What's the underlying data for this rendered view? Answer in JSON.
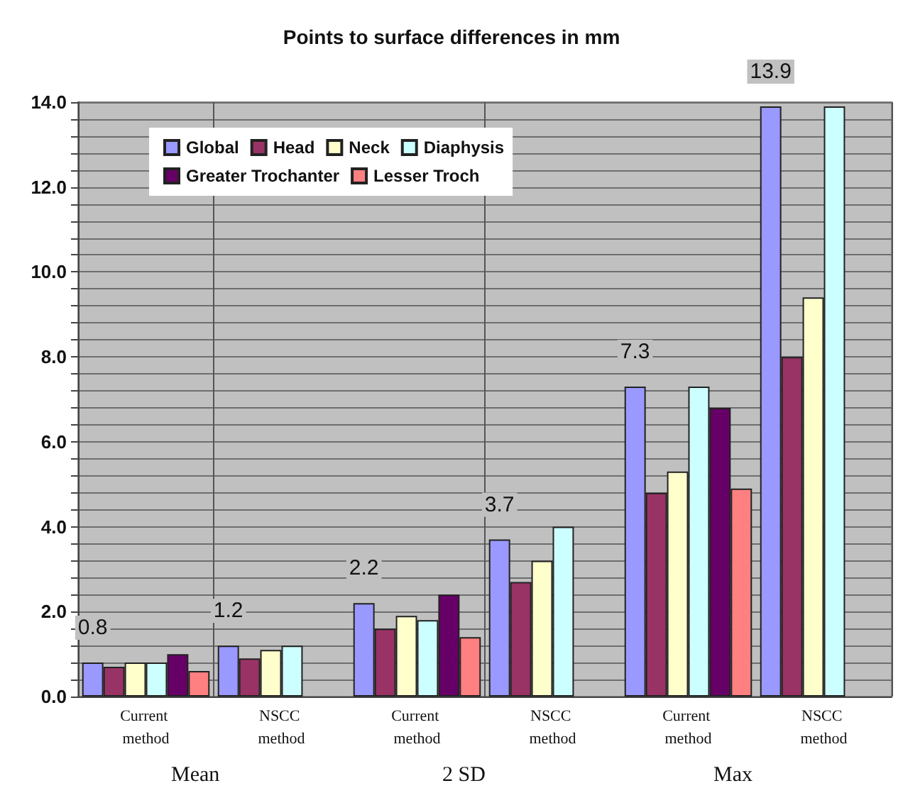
{
  "chart_data": {
    "type": "bar",
    "title": "Points to surface differences in mm",
    "categories": [
      "Current method",
      "NSCC method",
      "Current method",
      "NSCC method",
      "Current method",
      "NSCC method"
    ],
    "series": [
      {
        "name": "Global",
        "color": "#9999ff",
        "values": [
          0.8,
          1.2,
          2.2,
          3.7,
          7.3,
          13.9
        ],
        "value_labels": [
          "0.8",
          "1.2",
          "2.2",
          "3.7",
          "7.3",
          "13.9"
        ]
      },
      {
        "name": "Head",
        "color": "#993366",
        "values": [
          0.7,
          0.9,
          1.6,
          2.7,
          4.8,
          8.0
        ]
      },
      {
        "name": "Neck",
        "color": "#ffffcc",
        "values": [
          0.8,
          1.1,
          1.9,
          3.2,
          5.3,
          9.4
        ]
      },
      {
        "name": "Diaphysis",
        "color": "#ccffff",
        "values": [
          0.8,
          1.2,
          1.8,
          4.0,
          7.3,
          13.9
        ]
      },
      {
        "name": "Greater Trochanter",
        "color": "#660066",
        "values": [
          1.0,
          null,
          2.4,
          null,
          6.8,
          null
        ]
      },
      {
        "name": "Lesser Troch",
        "color": "#ff8080",
        "values": [
          0.6,
          null,
          1.4,
          null,
          4.9,
          null
        ]
      }
    ],
    "annotations": [
      "Mean",
      "2 SD",
      "Max"
    ],
    "ylim": [
      0,
      14
    ],
    "yticks": [
      {
        "value": 0,
        "label": "0.0"
      },
      {
        "value": 0.4,
        "label": null
      },
      {
        "value": 0.8,
        "label": null
      },
      {
        "value": 1.2,
        "label": null
      },
      {
        "value": 1.6,
        "label": null
      },
      {
        "value": 2,
        "label": "2.0"
      },
      {
        "value": 2.4,
        "label": null
      },
      {
        "value": 2.8,
        "label": null
      },
      {
        "value": 3.2,
        "label": null
      },
      {
        "value": 3.6,
        "label": null
      },
      {
        "value": 4,
        "label": "4.0"
      },
      {
        "value": 4.4,
        "label": null
      },
      {
        "value": 4.8,
        "label": null
      },
      {
        "value": 5.2,
        "label": null
      },
      {
        "value": 5.6,
        "label": null
      },
      {
        "value": 6,
        "label": "6.0"
      },
      {
        "value": 6.4,
        "label": null
      },
      {
        "value": 6.8,
        "label": null
      },
      {
        "value": 7.2,
        "label": null
      },
      {
        "value": 7.6,
        "label": null
      },
      {
        "value": 8,
        "label": "8.0"
      },
      {
        "value": 8.4,
        "label": null
      },
      {
        "value": 8.8,
        "label": null
      },
      {
        "value": 9.2,
        "label": null
      },
      {
        "value": 9.6,
        "label": null
      },
      {
        "value": 10,
        "label": "10.0"
      },
      {
        "value": 10.4,
        "label": null
      },
      {
        "value": 10.8,
        "label": null
      },
      {
        "value": 11.2,
        "label": null
      },
      {
        "value": 11.6,
        "label": null
      },
      {
        "value": 12,
        "label": "12.0"
      },
      {
        "value": 12.4,
        "label": null
      },
      {
        "value": 12.8,
        "label": null
      },
      {
        "value": 13.2,
        "label": null
      },
      {
        "value": 13.6,
        "label": null
      },
      {
        "value": 14,
        "label": "14.0"
      }
    ],
    "grid": "y",
    "legend": "top left"
  }
}
